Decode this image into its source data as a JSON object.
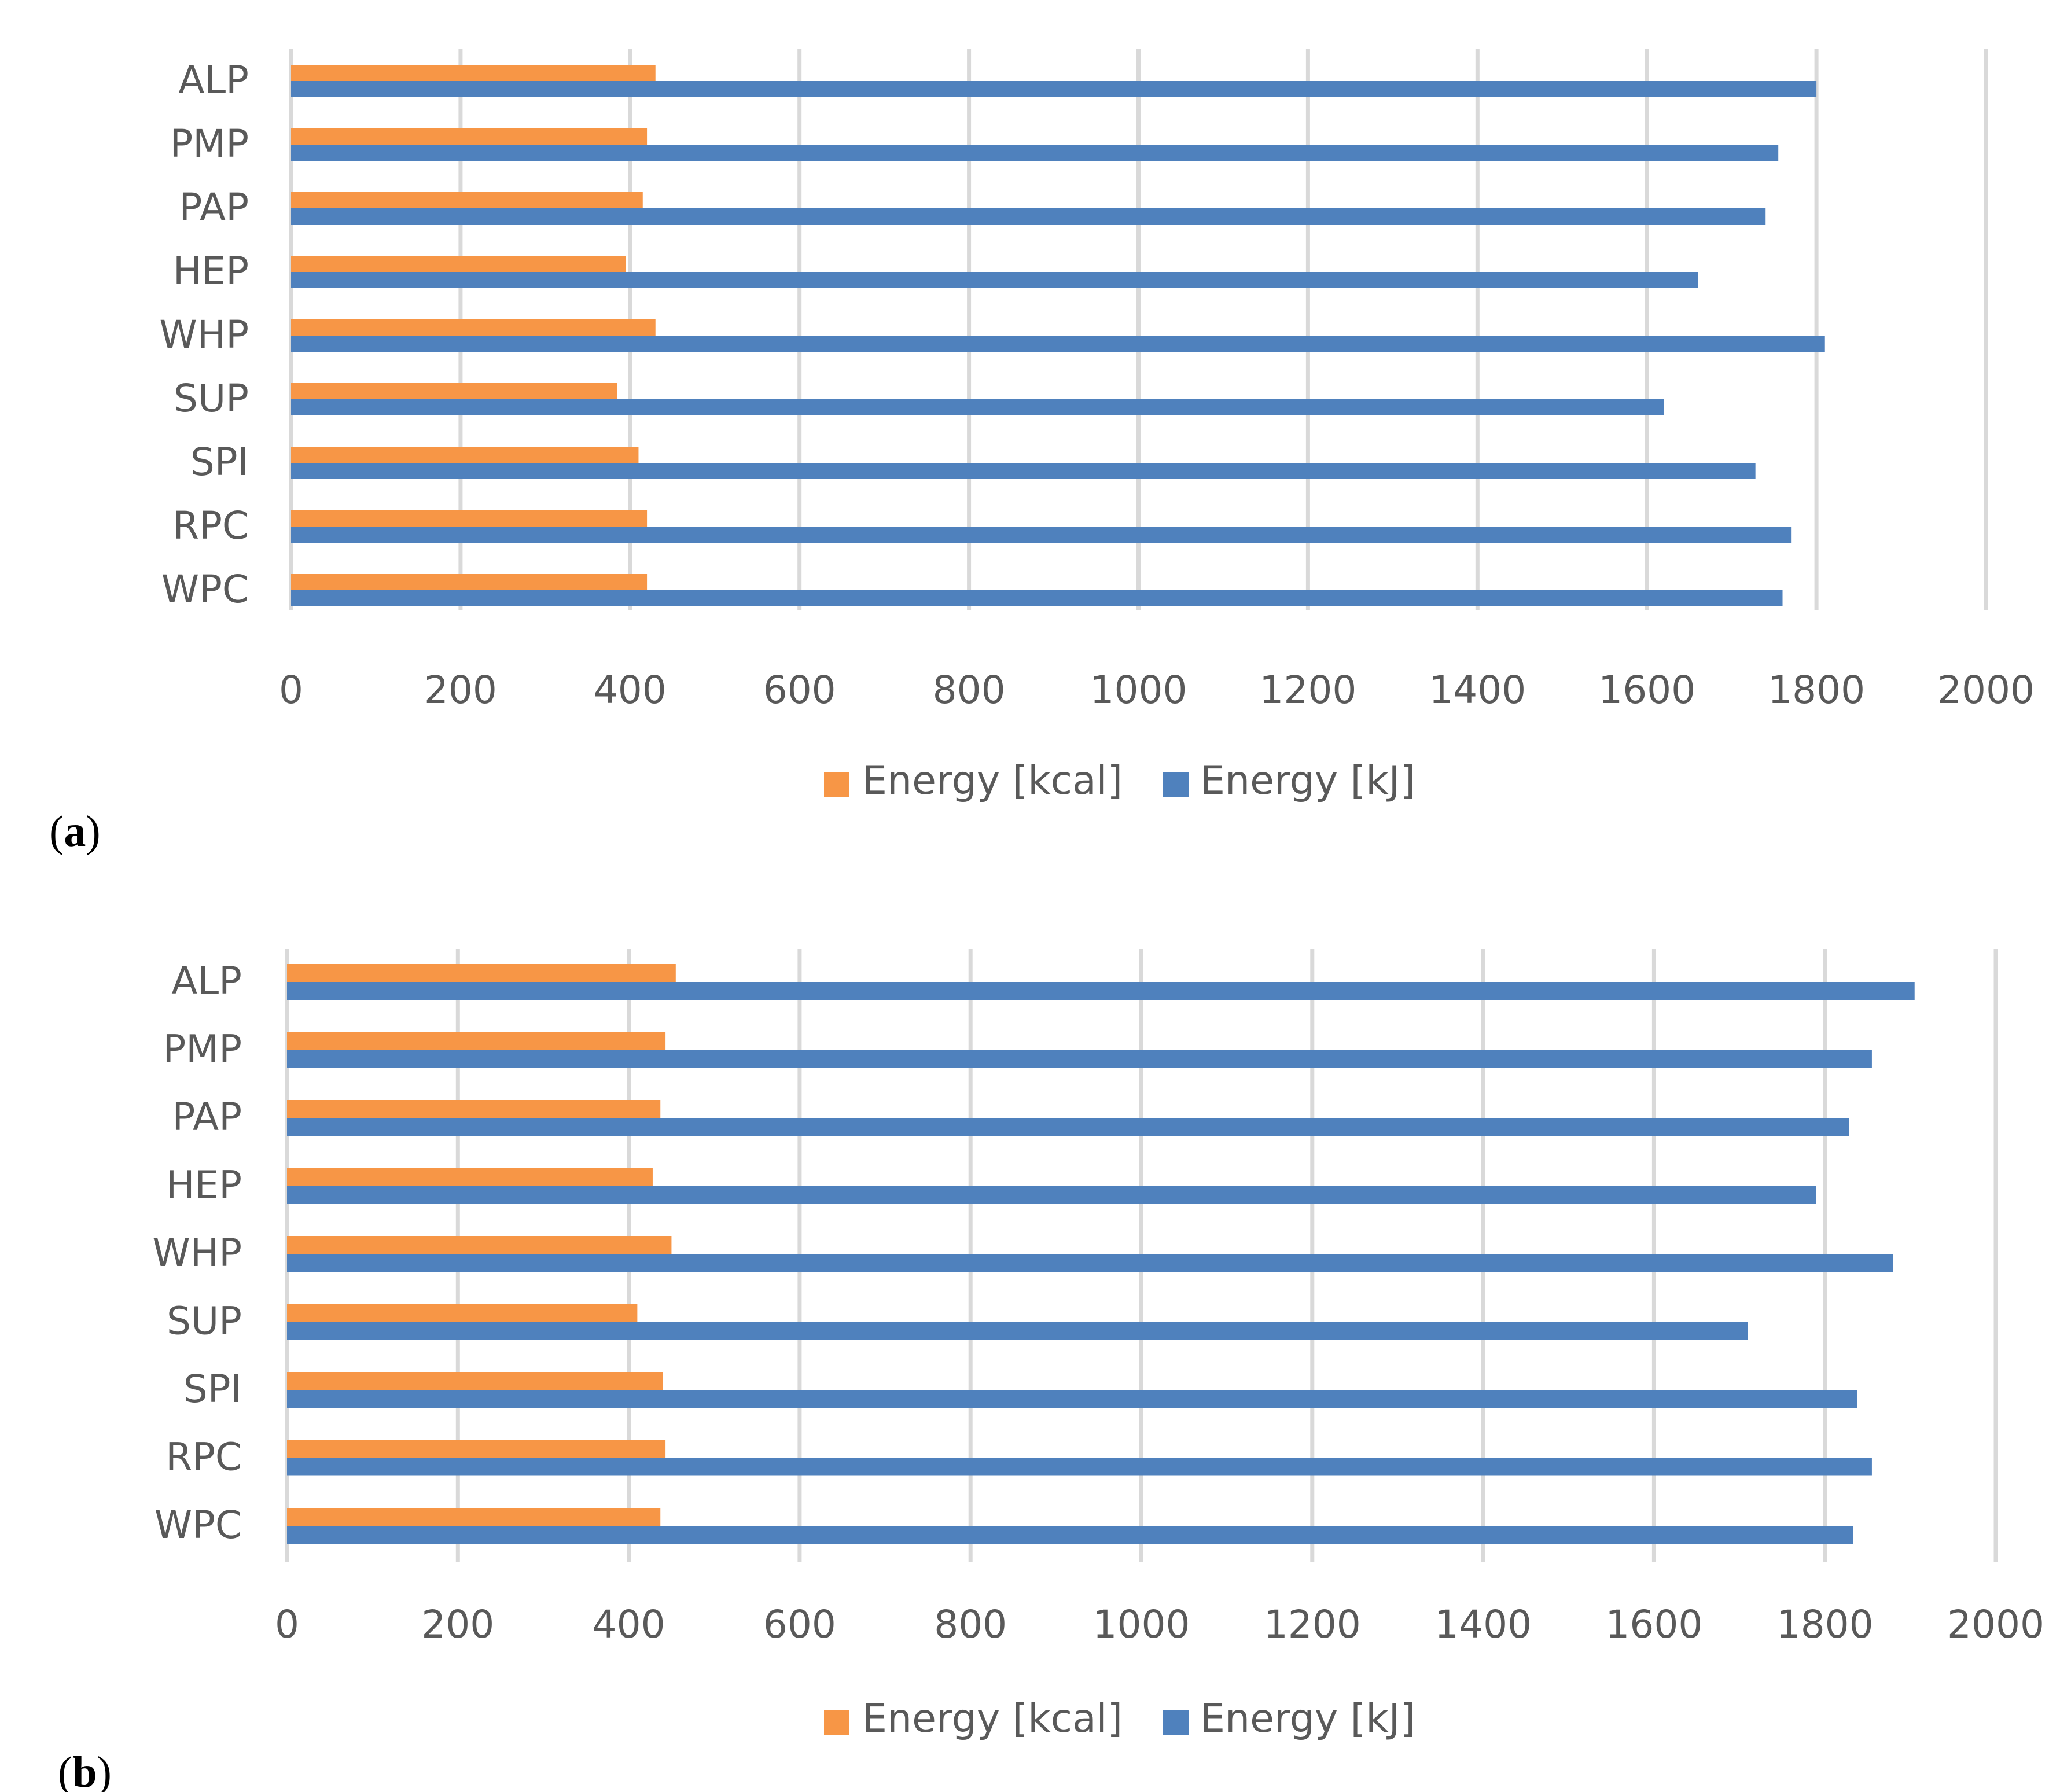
{
  "colors": {
    "kcal": "#f79646",
    "kj": "#4f81bd",
    "grid": "#d9d9d9",
    "text": "#595959"
  },
  "chart_data": [
    {
      "panel": "a",
      "type": "bar",
      "orientation": "horizontal",
      "categories": [
        "ALP",
        "PMP",
        "PAP",
        "HEP",
        "WHP",
        "SUP",
        "SPI",
        "RPC",
        "WPC"
      ],
      "series": [
        {
          "name": "Energy [kcal]",
          "color_key": "kcal",
          "values": [
            430,
            420,
            415,
            395,
            430,
            385,
            410,
            420,
            420
          ]
        },
        {
          "name": "Energy [kJ]",
          "color_key": "kj",
          "values": [
            1800,
            1755,
            1740,
            1660,
            1810,
            1620,
            1728,
            1770,
            1760
          ]
        }
      ],
      "x_ticks": [
        "0",
        "200",
        "400",
        "600",
        "800",
        "1000",
        "1200",
        "1400",
        "1600",
        "1800",
        "2000"
      ],
      "xlim": [
        0,
        2000
      ],
      "grid": true,
      "legend": "bottom-center",
      "label_open": "(",
      "label_letter": "a",
      "label_close": ")"
    },
    {
      "panel": "b",
      "type": "bar",
      "orientation": "horizontal",
      "categories": [
        "ALP",
        "PMP",
        "PAP",
        "HEP",
        "WHP",
        "SUP",
        "SPI",
        "RPC",
        "WPC"
      ],
      "series": [
        {
          "name": "Energy [kcal]",
          "color_key": "kcal",
          "values": [
            455,
            443,
            437,
            428,
            450,
            410,
            440,
            443,
            437
          ]
        },
        {
          "name": "Energy [kJ]",
          "color_key": "kj",
          "values": [
            1905,
            1855,
            1828,
            1790,
            1880,
            1710,
            1838,
            1855,
            1833
          ]
        }
      ],
      "x_ticks": [
        "0",
        "200",
        "400",
        "600",
        "800",
        "1000",
        "1200",
        "1400",
        "1600",
        "1800",
        "2000"
      ],
      "xlim": [
        0,
        2000
      ],
      "grid": true,
      "legend": "bottom-center",
      "label_open": "(",
      "label_letter": "b",
      "label_close": ")"
    }
  ]
}
